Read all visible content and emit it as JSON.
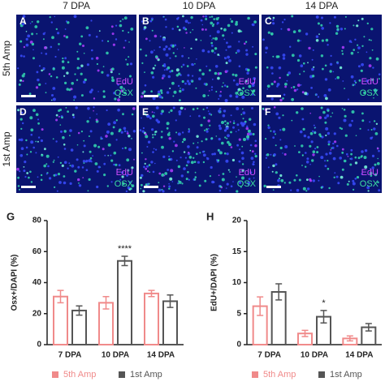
{
  "panels": {
    "columns": [
      "7 DPA",
      "10 DPA",
      "14 DPA"
    ],
    "rows": [
      "5th Amp",
      "1st Amp"
    ],
    "letters": [
      "A",
      "B",
      "C",
      "D",
      "E",
      "F"
    ],
    "stains": [
      "EdU",
      "OSX"
    ]
  },
  "chart_data": [
    {
      "type": "bar",
      "panel_label": "G",
      "ylabel": "Osx+/DAPI (%)",
      "categories": [
        "7 DPA",
        "10 DPA",
        "14 DPA"
      ],
      "series": [
        {
          "name": "5th Amp",
          "color": "#f08a8a",
          "values": [
            31,
            27,
            33
          ],
          "errors": [
            4,
            4,
            2
          ]
        },
        {
          "name": "1st Amp",
          "color": "#555555",
          "values": [
            22,
            54,
            28
          ],
          "errors": [
            3,
            3,
            4
          ]
        }
      ],
      "ylim": [
        0,
        80
      ],
      "yticks": [
        0,
        20,
        40,
        60,
        80
      ],
      "annotations": [
        {
          "text": "****",
          "category": "10 DPA",
          "series": "1st Amp"
        }
      ]
    },
    {
      "type": "bar",
      "panel_label": "H",
      "ylabel": "EdU+/DAPI (%)",
      "categories": [
        "7 DPA",
        "10 DPA",
        "14 DPA"
      ],
      "series": [
        {
          "name": "5th Amp",
          "color": "#f08a8a",
          "values": [
            6.2,
            1.8,
            1.0
          ],
          "errors": [
            1.5,
            0.5,
            0.4
          ]
        },
        {
          "name": "1st Amp",
          "color": "#555555",
          "values": [
            8.5,
            4.5,
            2.8
          ],
          "errors": [
            1.3,
            1.0,
            0.6
          ]
        }
      ],
      "ylim": [
        0,
        20
      ],
      "yticks": [
        0,
        5,
        10,
        15,
        20
      ],
      "annotations": [
        {
          "text": "*",
          "category": "10 DPA",
          "series": "1st Amp"
        }
      ]
    }
  ]
}
